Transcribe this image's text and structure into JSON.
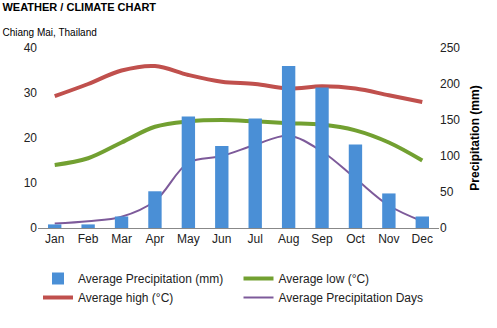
{
  "chart_data": {
    "type": "bar",
    "title": "WEATHER / CLIMATE CHART",
    "subtitle": "Chiang Mai, Thailand",
    "categories": [
      "Jan",
      "Feb",
      "Mar",
      "Apr",
      "May",
      "Jun",
      "Jul",
      "Aug",
      "Sep",
      "Oct",
      "Nov",
      "Dec"
    ],
    "y2_label": "Precipitation (mm)",
    "ylim": [
      0,
      40
    ],
    "yticks": [
      0,
      10,
      20,
      30,
      40
    ],
    "y2lim": [
      0,
      250
    ],
    "y2ticks": [
      0,
      50,
      100,
      150,
      200,
      250
    ],
    "grid": false,
    "legend": "bottom",
    "series": [
      {
        "name": "Average Precipitation (mm)",
        "type": "bar",
        "axis": "y2",
        "color": "#4a8fd6",
        "values": [
          5,
          5,
          16,
          51,
          155,
          114,
          152,
          225,
          195,
          116,
          48,
          16
        ]
      },
      {
        "name": "Average low (°C)",
        "type": "line",
        "color": "#72a031",
        "values": [
          14,
          15.5,
          19,
          22.5,
          23.7,
          24,
          23.7,
          23.3,
          23,
          21.7,
          19,
          15
        ]
      },
      {
        "name": "Average high (°C)",
        "type": "line",
        "color": "#c0504d",
        "values": [
          29.3,
          32,
          35,
          36,
          34,
          32.5,
          32,
          31,
          31.5,
          31,
          29.5,
          28
        ]
      },
      {
        "name": "Average Precipitation Days",
        "type": "line",
        "color": "#7d5a9a",
        "values": [
          1,
          1.5,
          2.5,
          6,
          14.5,
          16,
          18.5,
          20.5,
          17,
          11,
          5,
          1.5
        ]
      }
    ]
  }
}
